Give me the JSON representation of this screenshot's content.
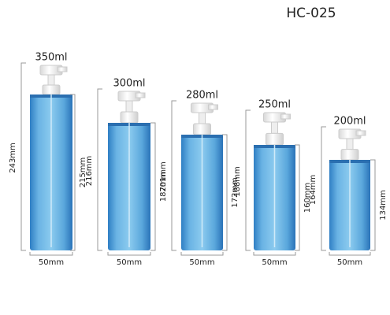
{
  "header": {
    "title": "HC-025"
  },
  "bottles": [
    {
      "capacity": "350ml",
      "total_height": "243mm",
      "body_height": "215mm",
      "width": "50mm"
    },
    {
      "capacity": "300ml",
      "total_height": "216mm",
      "body_height": "187mm",
      "width": "50mm"
    },
    {
      "capacity": "280ml",
      "total_height": "201mm",
      "body_height": "172mm",
      "width": "50mm"
    },
    {
      "capacity": "250ml",
      "total_height": "188mm",
      "body_height": "160mm",
      "width": "50mm"
    },
    {
      "capacity": "200ml",
      "total_height": "164mm",
      "body_height": "134mm",
      "width": "50mm"
    }
  ]
}
